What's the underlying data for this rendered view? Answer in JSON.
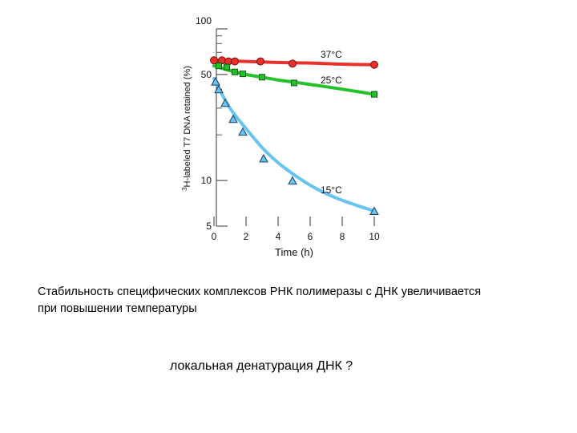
{
  "chart_data": {
    "type": "line",
    "xlabel": "Time (h)",
    "ylabel_superscript": "3",
    "ylabel": "H-labeled T7 DNA retained (%)",
    "xlim": [
      0,
      10
    ],
    "ylim": [
      5,
      100
    ],
    "y_scale": "log",
    "x_ticks": [
      0,
      2,
      4,
      6,
      8,
      10
    ],
    "y_tick_labels": [
      100,
      50,
      10,
      5
    ],
    "y_minor_ticks": [
      20,
      30,
      40,
      60,
      70,
      80,
      90
    ],
    "grid": false,
    "legend": "inline labels near curves",
    "series": [
      {
        "name": "37°C",
        "color": "#e8302c",
        "marker": "circle",
        "x": [
          0,
          0.5,
          0.9,
          1.3,
          2.9,
          4.9,
          10
        ],
        "y": [
          62,
          62,
          61,
          61,
          61,
          59,
          58
        ],
        "fit_x": [
          0,
          2,
          4,
          6,
          8,
          10
        ],
        "fit_y": [
          62,
          61,
          60,
          59.5,
          58.5,
          58
        ]
      },
      {
        "name": "25°C",
        "color": "#24c22a",
        "marker": "square",
        "x": [
          0.3,
          0.8,
          1.3,
          1.8,
          3.0,
          5.0,
          10
        ],
        "y": [
          57,
          56,
          52,
          50.5,
          48,
          44,
          37
        ],
        "fit_x": [
          0,
          0.5,
          1,
          2,
          3,
          4,
          5,
          6,
          7,
          8,
          9,
          10
        ],
        "fit_y": [
          57,
          55,
          53,
          50,
          48,
          46,
          44.5,
          43,
          41.5,
          40,
          38.5,
          37
        ]
      },
      {
        "name": "15°C",
        "color": "#66c4ee",
        "marker": "triangle",
        "x": [
          0.1,
          0.3,
          0.7,
          1.2,
          1.8,
          3.1,
          4.9,
          10
        ],
        "y": [
          45,
          40,
          32.5,
          25.5,
          21,
          14,
          10,
          6.3
        ],
        "fit_x": [
          0,
          0.5,
          1,
          1.5,
          2,
          2.5,
          3,
          3.5,
          4,
          4.5,
          5,
          6,
          7,
          8,
          9,
          10
        ],
        "fit_y": [
          47,
          37,
          30,
          25.5,
          22,
          19,
          16.5,
          14.6,
          13.1,
          11.9,
          10.9,
          9.3,
          8.2,
          7.4,
          6.8,
          6.3
        ]
      }
    ]
  },
  "caption": {
    "line1": "Стабильность специфических комплексов РНК полимеразы с ДНК увеличивается",
    "line2": "при повышении температуры"
  },
  "question": "локальная денатурация ДНК ?"
}
